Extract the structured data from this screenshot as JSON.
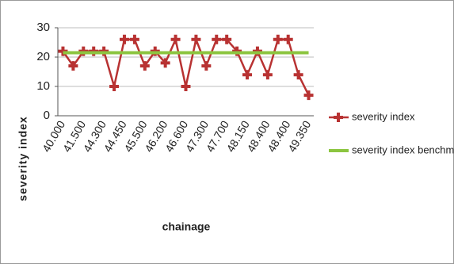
{
  "chart_data": {
    "type": "line",
    "x_label": "chainage",
    "y_label": "severity index",
    "categories": [
      "40.000",
      null,
      "41.500",
      null,
      "44.300",
      null,
      "44.450",
      null,
      "45.500",
      null,
      "46.200",
      null,
      "46.600",
      null,
      "47.300",
      null,
      "47.700",
      null,
      "48.150",
      null,
      "48.400",
      null,
      "48.400",
      null,
      "49.350"
    ],
    "series": [
      {
        "name": "severity index",
        "color": "#b83232",
        "marker": "plus",
        "values": [
          22,
          17,
          22,
          22,
          22,
          10,
          26,
          26,
          17,
          22,
          18,
          26,
          10,
          26,
          17,
          26,
          26,
          22,
          14,
          22,
          14,
          26,
          26,
          14,
          7
        ]
      },
      {
        "name": "severity index benchmark",
        "color": "#8cc540",
        "marker": "none",
        "values": [
          21.5,
          21.5,
          21.5,
          21.5,
          21.5,
          21.5,
          21.5,
          21.5,
          21.5,
          21.5,
          21.5,
          21.5,
          21.5,
          21.5,
          21.5,
          21.5,
          21.5,
          21.5,
          21.5,
          21.5,
          21.5,
          21.5,
          21.5,
          21.5,
          21.5
        ]
      }
    ],
    "ylim": [
      0,
      30
    ],
    "yticks": [
      0,
      10,
      20,
      30
    ],
    "grid": true,
    "legend": "right"
  }
}
